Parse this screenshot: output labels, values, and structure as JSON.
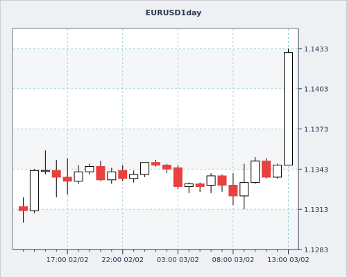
{
  "chart_data": {
    "type": "candlestick",
    "title": "EURUSD1day",
    "xlabel": "",
    "ylabel": "",
    "ylim": [
      1.1283,
      1.1448
    ],
    "y_ticks": [
      "1.1283",
      "1.1313",
      "1.1343",
      "1.1373",
      "1.1403",
      "1.1433"
    ],
    "x_ticks": [
      {
        "index": 4,
        "label": "17:00 02/02"
      },
      {
        "index": 9,
        "label": "22:00 02/02"
      },
      {
        "index": 14,
        "label": "03:00 03/02"
      },
      {
        "index": 19,
        "label": "08:00 03/02"
      },
      {
        "index": 24,
        "label": "13:00 03/02"
      }
    ],
    "grid": true,
    "colors": {
      "up": "#ffffff",
      "down": "#e8413f",
      "wick": "#000000",
      "grid": "#9fd3da",
      "band": "#f5f6f8",
      "plot": "#ffffff"
    },
    "candles": [
      {
        "open": 1.1315,
        "high": 1.1322,
        "low": 1.1303,
        "close": 1.1312
      },
      {
        "open": 1.1312,
        "high": 1.1343,
        "low": 1.131,
        "close": 1.1342
      },
      {
        "open": 1.1342,
        "high": 1.1357,
        "low": 1.1339,
        "close": 1.1342
      },
      {
        "open": 1.1342,
        "high": 1.135,
        "low": 1.1322,
        "close": 1.1337
      },
      {
        "open": 1.1337,
        "high": 1.1351,
        "low": 1.1324,
        "close": 1.1334
      },
      {
        "open": 1.1334,
        "high": 1.1346,
        "low": 1.1332,
        "close": 1.1341
      },
      {
        "open": 1.1341,
        "high": 1.1347,
        "low": 1.1339,
        "close": 1.1345
      },
      {
        "open": 1.1345,
        "high": 1.1349,
        "low": 1.1334,
        "close": 1.1335
      },
      {
        "open": 1.1335,
        "high": 1.1344,
        "low": 1.1332,
        "close": 1.1341
      },
      {
        "open": 1.1342,
        "high": 1.1346,
        "low": 1.1334,
        "close": 1.1336
      },
      {
        "open": 1.1336,
        "high": 1.1342,
        "low": 1.1333,
        "close": 1.1339
      },
      {
        "open": 1.1339,
        "high": 1.1348,
        "low": 1.1337,
        "close": 1.1348
      },
      {
        "open": 1.1348,
        "high": 1.135,
        "low": 1.1345,
        "close": 1.1346
      },
      {
        "open": 1.1346,
        "high": 1.1347,
        "low": 1.134,
        "close": 1.1343
      },
      {
        "open": 1.1344,
        "high": 1.1346,
        "low": 1.1328,
        "close": 1.133
      },
      {
        "open": 1.133,
        "high": 1.1333,
        "low": 1.1325,
        "close": 1.1332
      },
      {
        "open": 1.1332,
        "high": 1.1333,
        "low": 1.1326,
        "close": 1.133
      },
      {
        "open": 1.1331,
        "high": 1.134,
        "low": 1.1325,
        "close": 1.1338
      },
      {
        "open": 1.1338,
        "high": 1.1339,
        "low": 1.1326,
        "close": 1.1331
      },
      {
        "open": 1.1331,
        "high": 1.134,
        "low": 1.1316,
        "close": 1.1323
      },
      {
        "open": 1.1323,
        "high": 1.1347,
        "low": 1.1313,
        "close": 1.1333
      },
      {
        "open": 1.1333,
        "high": 1.1352,
        "low": 1.1332,
        "close": 1.1349
      },
      {
        "open": 1.1349,
        "high": 1.1351,
        "low": 1.1336,
        "close": 1.1337
      },
      {
        "open": 1.1337,
        "high": 1.1347,
        "low": 1.1336,
        "close": 1.1346
      },
      {
        "open": 1.1346,
        "high": 1.1433,
        "low": 1.1346,
        "close": 1.143
      }
    ]
  }
}
